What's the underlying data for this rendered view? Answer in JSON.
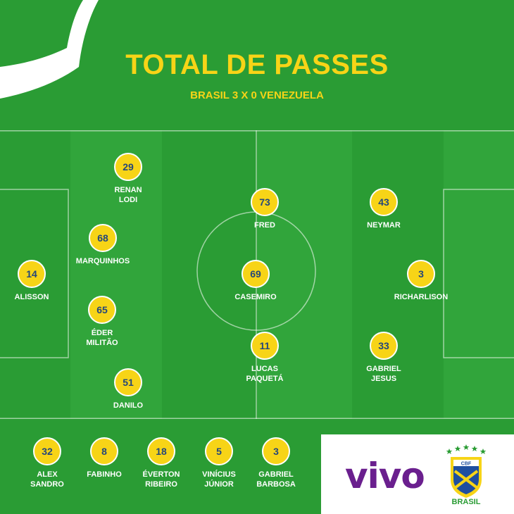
{
  "header": {
    "title": "TOTAL DE PASSES",
    "subtitle": "BRASIL 3 X 0 VENEZUELA"
  },
  "colors": {
    "background": "#2a9c34",
    "bubble": "#f7d417",
    "bubble_text": "#24477a",
    "lines": "#ffffff",
    "vivo": "#6a1f8e"
  },
  "starters": [
    {
      "name": "RENAN\nLODI",
      "passes": "29"
    },
    {
      "name": "MARQUINHOS",
      "passes": "68"
    },
    {
      "name": "ALISSON",
      "passes": "14"
    },
    {
      "name": "ÉDER\nMILITÃO",
      "passes": "65"
    },
    {
      "name": "DANILO",
      "passes": "51"
    },
    {
      "name": "FRED",
      "passes": "73"
    },
    {
      "name": "CASEMIRO",
      "passes": "69"
    },
    {
      "name": "LUCAS\nPAQUETÁ",
      "passes": "11"
    },
    {
      "name": "NEYMAR",
      "passes": "43"
    },
    {
      "name": "RICHARLISON",
      "passes": "3"
    },
    {
      "name": "GABRIEL\nJESUS",
      "passes": "33"
    }
  ],
  "substitutes": [
    {
      "name": "ALEX\nSANDRO",
      "passes": "32"
    },
    {
      "name": "FABINHO",
      "passes": "8"
    },
    {
      "name": "ÉVERTON\nRIBEIRO",
      "passes": "18"
    },
    {
      "name": "VINÍCIUS\nJÚNIOR",
      "passes": "5"
    },
    {
      "name": "GABRIEL\nBARBOSA",
      "passes": "3"
    }
  ],
  "sponsor": {
    "brand": "vivo",
    "federation_label": "BRASIL",
    "federation_badge": "CBF",
    "stars": 5
  }
}
